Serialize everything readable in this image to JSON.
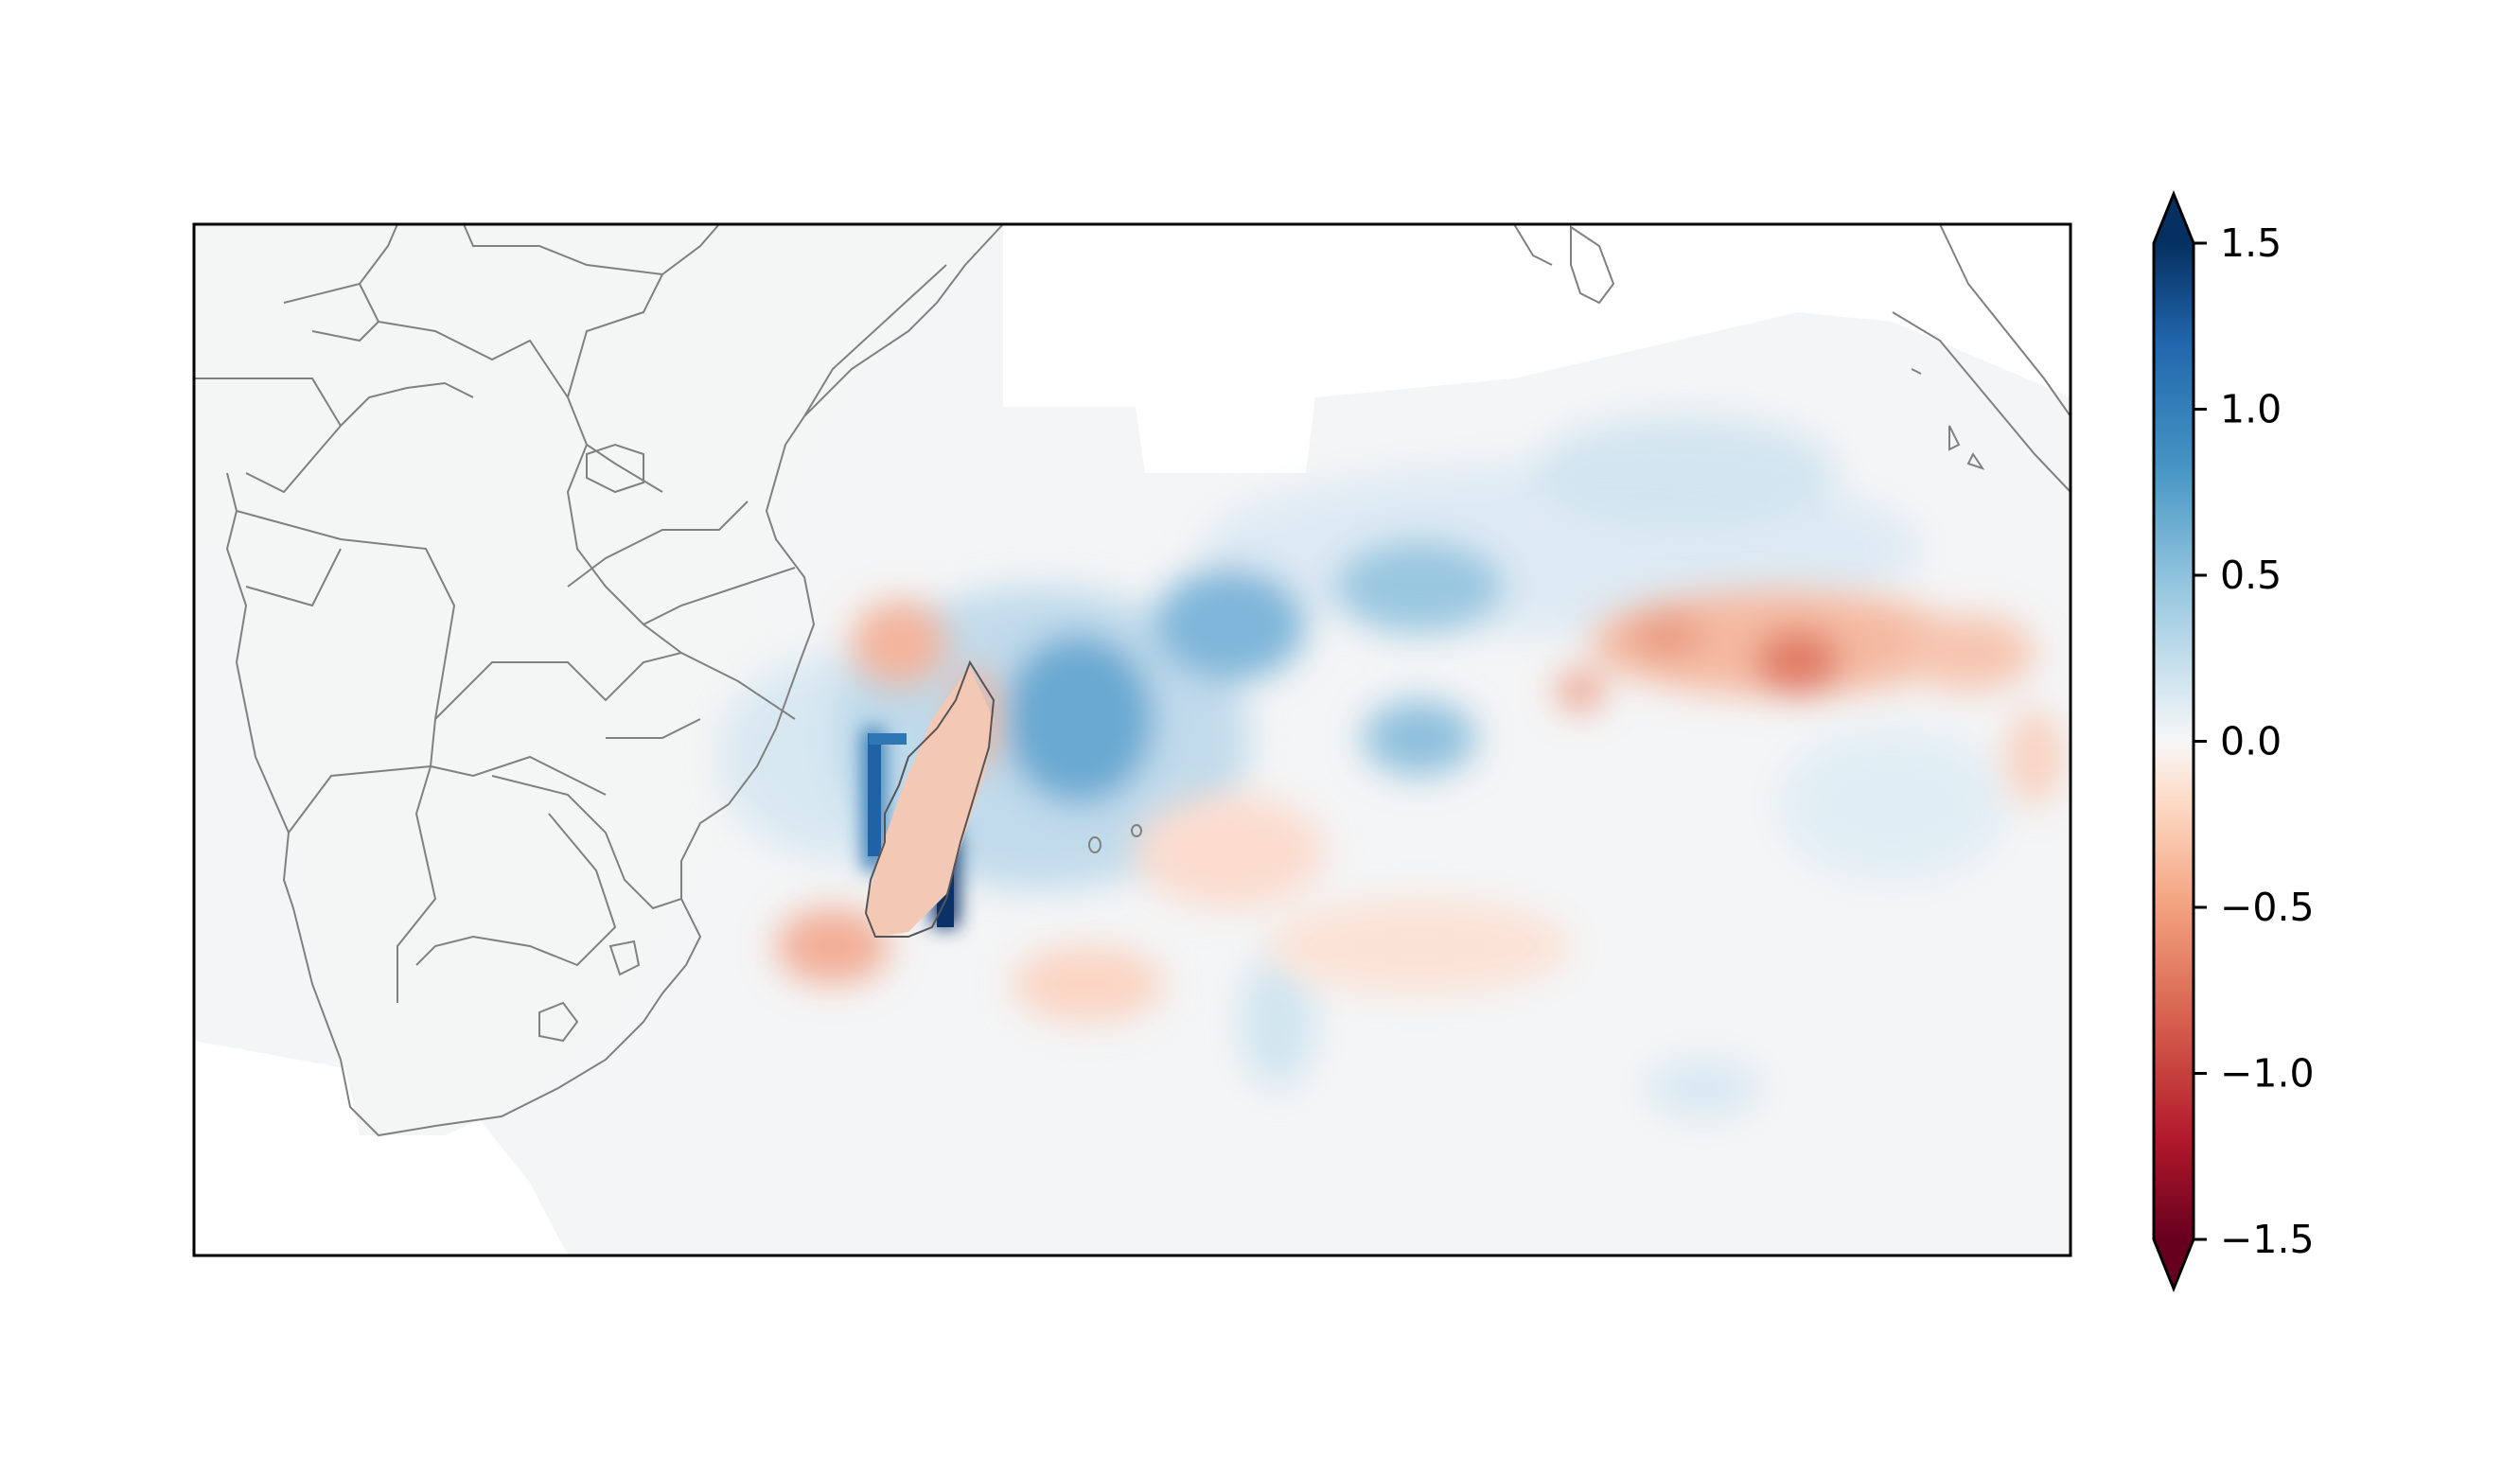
{
  "figure": {
    "type": "map",
    "region": "Southwest Indian Ocean / Southern & Eastern Africa",
    "basemap": "coastlines and country borders (gray outline)",
    "field": "diverging gridded anomaly field"
  },
  "colorbar": {
    "colormap": "RdBu",
    "min": -1.5,
    "max": 1.5,
    "extend": "both",
    "orientation": "vertical",
    "ticks": [
      {
        "value": 1.5,
        "label": "1.5"
      },
      {
        "value": 1.0,
        "label": "1.0"
      },
      {
        "value": 0.5,
        "label": "0.5"
      },
      {
        "value": 0.0,
        "label": "0.0"
      },
      {
        "value": -0.5,
        "label": "−0.5"
      },
      {
        "value": -1.0,
        "label": "−1.0"
      },
      {
        "value": -1.5,
        "label": "−1.5"
      }
    ],
    "colors": {
      "strong_negative": "#67001f",
      "negative": "#d6604d",
      "weak_negative": "#fddbc7",
      "neutral": "#f7f7f7",
      "weak_positive": "#d1e5f0",
      "positive": "#4393c3",
      "strong_positive": "#053061"
    }
  },
  "features": {
    "land_color": "#f4f5f5",
    "border_color": "#808080",
    "no_data_color": "#ffffff"
  }
}
